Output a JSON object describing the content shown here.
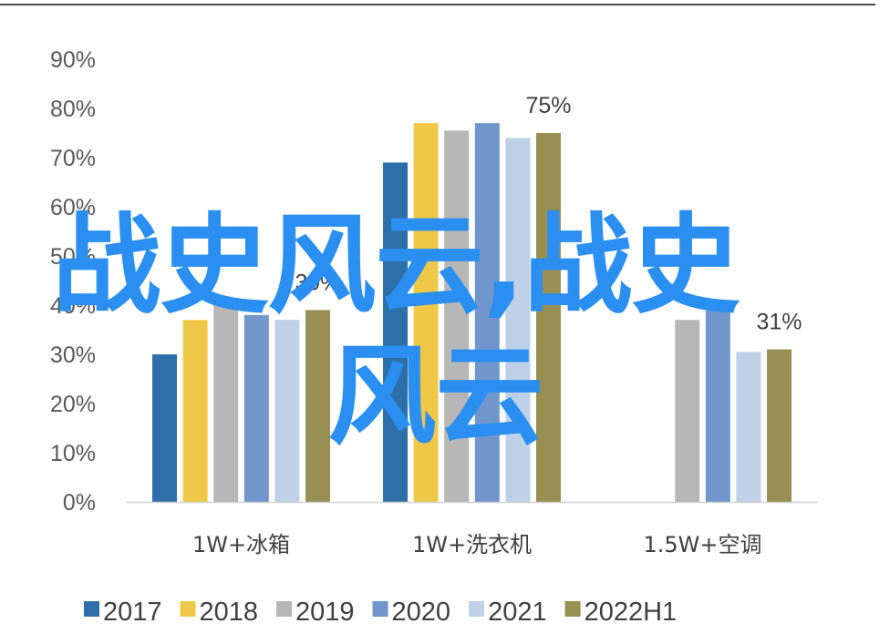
{
  "chart_data": {
    "type": "bar",
    "categories": [
      "1W+冰箱",
      "1W+洗衣机",
      "1.5W+空调"
    ],
    "series": [
      {
        "name": "2017",
        "color": "#2e6faa",
        "values": [
          30,
          69,
          null
        ]
      },
      {
        "name": "2018",
        "color": "#f0c848",
        "values": [
          37,
          77,
          null
        ]
      },
      {
        "name": "2019",
        "color": "#b7b7b7",
        "values": [
          40,
          75.5,
          37
        ]
      },
      {
        "name": "2020",
        "color": "#7196cc",
        "values": [
          38,
          77,
          41
        ]
      },
      {
        "name": "2021",
        "color": "#bfd1e8",
        "values": [
          37,
          74,
          30.5
        ]
      },
      {
        "name": "2022H1",
        "color": "#988f52",
        "values": [
          39,
          75,
          31
        ]
      }
    ],
    "data_labels": [
      {
        "category_index": 0,
        "series_index": 5,
        "text": "39%"
      },
      {
        "category_index": 1,
        "series_index": 5,
        "text": "75%"
      },
      {
        "category_index": 2,
        "series_index": 5,
        "text": "31%"
      }
    ],
    "yticks": [
      "0%",
      "10%",
      "20%",
      "30%",
      "40%",
      "50%",
      "60%",
      "70%",
      "80%",
      "90%"
    ],
    "ylim": [
      0,
      90
    ],
    "grid": false,
    "legend_position": "bottom",
    "title": "",
    "xlabel": "",
    "ylabel": ""
  },
  "watermark": {
    "line1": "战史风云,战史",
    "line2": "风云"
  }
}
